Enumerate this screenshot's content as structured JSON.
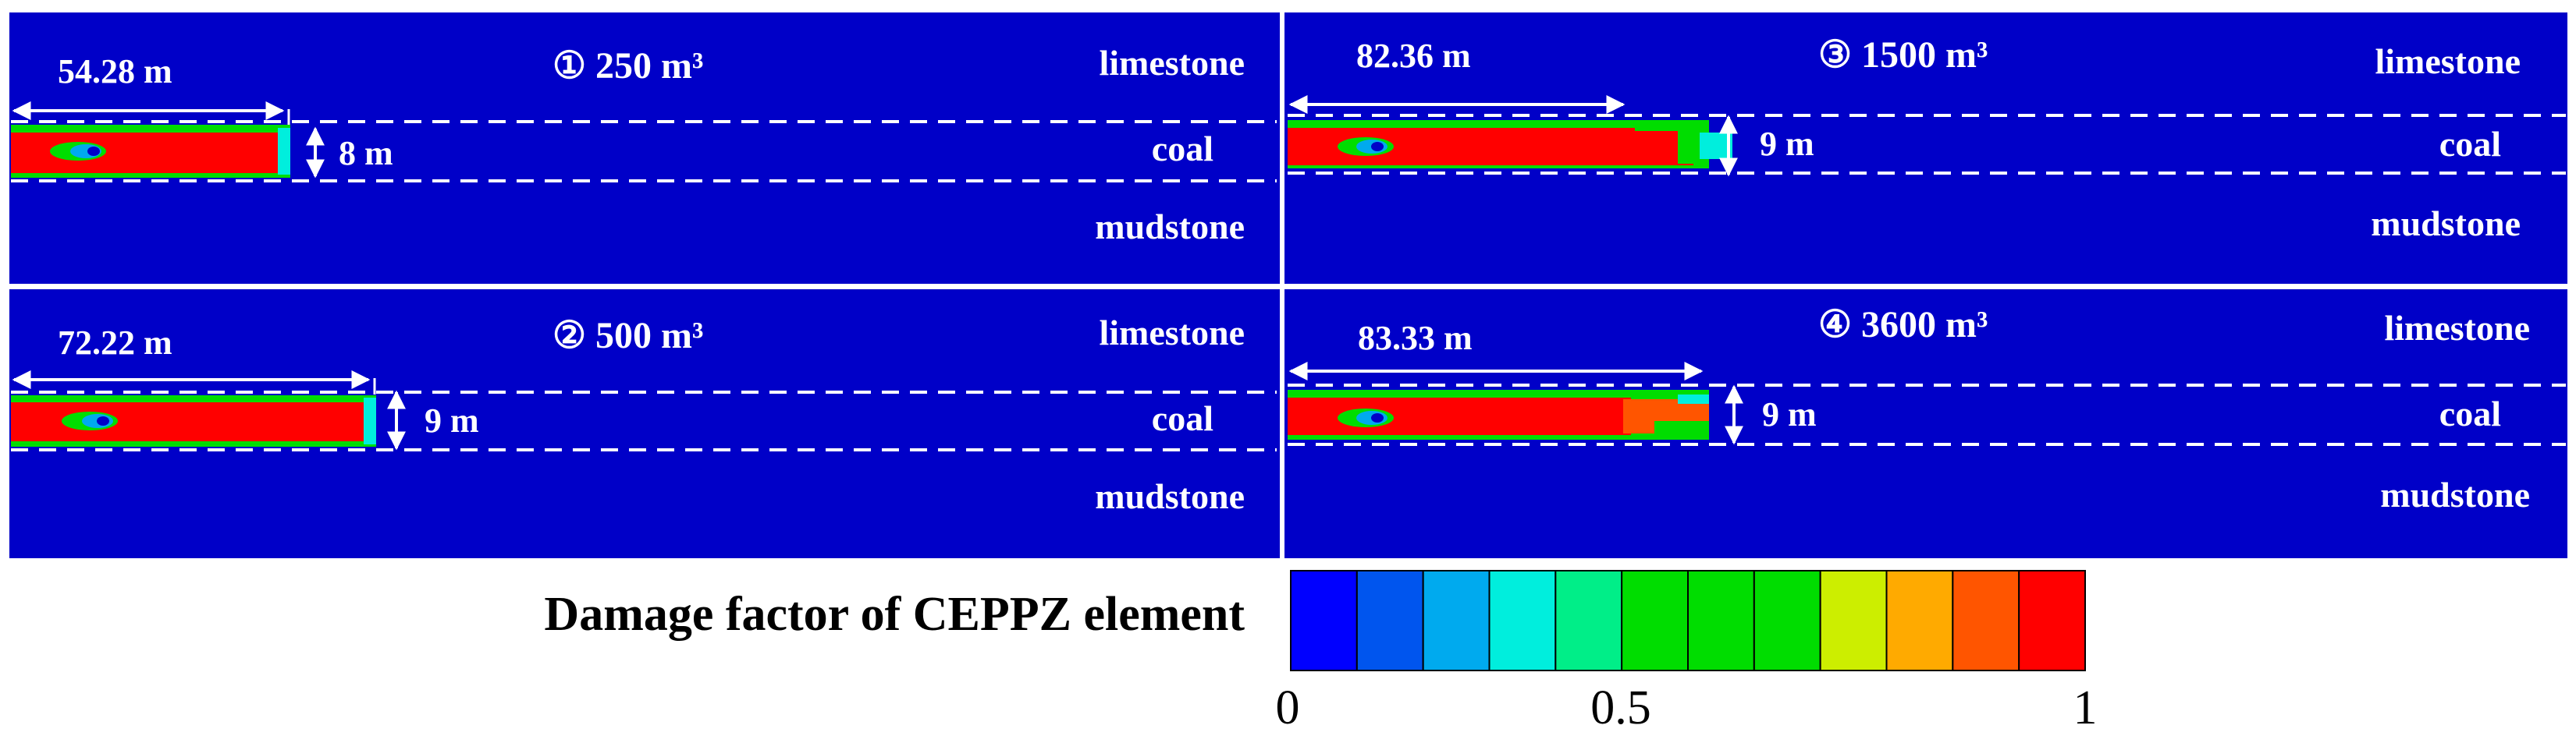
{
  "panels": [
    {
      "id": "panel-1",
      "title": "① 250 m³",
      "length_label": "54.28 m",
      "height_label": "8 m",
      "layers": {
        "top": "limestone",
        "middle": "coal",
        "bottom": "mudstone"
      }
    },
    {
      "id": "panel-2",
      "title": "② 500 m³",
      "length_label": "72.22 m",
      "height_label": "9 m",
      "layers": {
        "top": "limestone",
        "middle": "coal",
        "bottom": "mudstone"
      }
    },
    {
      "id": "panel-3",
      "title": "③ 1500 m³",
      "length_label": "82.36 m",
      "height_label": "9 m",
      "layers": {
        "top": "limestone",
        "middle": "coal",
        "bottom": "mudstone"
      }
    },
    {
      "id": "panel-4",
      "title": "④ 3600 m³",
      "length_label": "83.33 m",
      "height_label": "9 m",
      "layers": {
        "top": "limestone",
        "middle": "coal",
        "bottom": "mudstone"
      }
    }
  ],
  "colorbar": {
    "title": "Damage factor of CEPPZ element",
    "colors": [
      "#0000ff",
      "#0055ee",
      "#00aaee",
      "#00eedd",
      "#00ee88",
      "#00dd00",
      "#00dd00",
      "#00dd00",
      "#ccee00",
      "#ffaa00",
      "#ff5500",
      "#ff0000"
    ],
    "tick_labels": [
      "0",
      "0.5",
      "1"
    ],
    "tick_values": [
      0,
      0.5,
      1
    ]
  },
  "colors": {
    "background": "#0000c8",
    "divider": "#ffffff",
    "damage_high": "#ff0000",
    "damage_mid": "#00dd00",
    "damage_low": "#0080ff",
    "annotation": "#ffffff"
  }
}
